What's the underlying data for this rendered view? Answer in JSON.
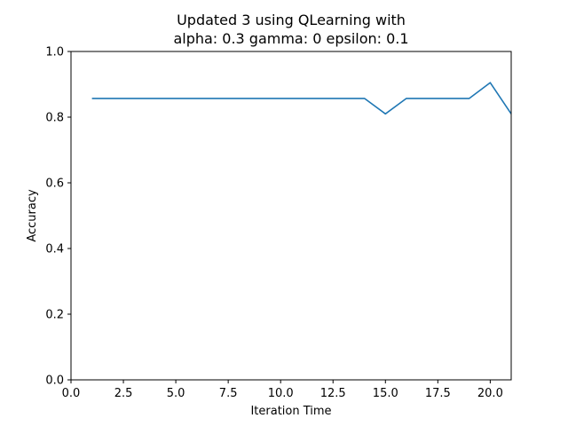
{
  "chart_data": {
    "type": "line",
    "title_lines": [
      "Updated 3 using QLearning with",
      "alpha: 0.3 gamma: 0 epsilon: 0.1"
    ],
    "xlabel": "Iteration Time",
    "ylabel": "Accuracy",
    "xlim": [
      0,
      21
    ],
    "ylim": [
      0,
      1.0
    ],
    "xticks": [
      0.0,
      2.5,
      5.0,
      7.5,
      10.0,
      12.5,
      15.0,
      17.5,
      20.0
    ],
    "xtick_labels": [
      "0.0",
      "2.5",
      "5.0",
      "7.5",
      "10.0",
      "12.5",
      "15.0",
      "17.5",
      "20.0"
    ],
    "yticks": [
      0.0,
      0.2,
      0.4,
      0.6,
      0.8,
      1.0
    ],
    "ytick_labels": [
      "0.0",
      "0.2",
      "0.4",
      "0.6",
      "0.8",
      "1.0"
    ],
    "grid": false,
    "series": [
      {
        "color": "#1f77b4",
        "x": [
          1,
          2,
          3,
          4,
          5,
          6,
          7,
          8,
          9,
          10,
          11,
          12,
          13,
          14,
          15,
          16,
          17,
          18,
          19,
          20,
          21
        ],
        "y": [
          0.857,
          0.857,
          0.857,
          0.857,
          0.857,
          0.857,
          0.857,
          0.857,
          0.857,
          0.857,
          0.857,
          0.857,
          0.857,
          0.857,
          0.81,
          0.857,
          0.857,
          0.857,
          0.857,
          0.905,
          0.81
        ]
      }
    ]
  }
}
